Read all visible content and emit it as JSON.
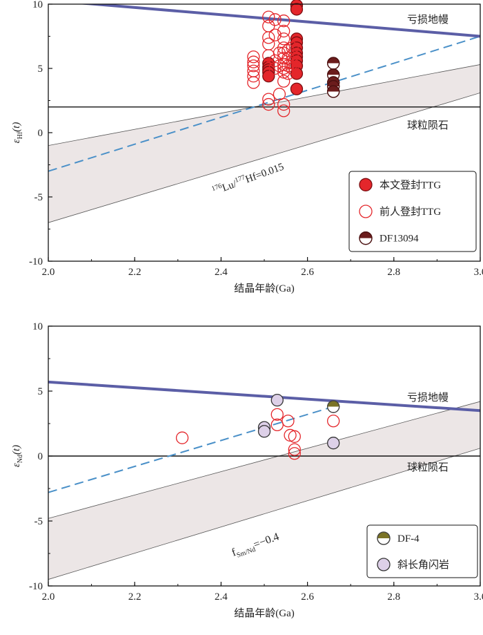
{
  "chart_data": [
    {
      "type": "scatter",
      "title": "",
      "xlabel": "结晶年龄(Ga)",
      "ylabel": "εHf(t)",
      "xlim": [
        2.0,
        3.0
      ],
      "ylim": [
        -10,
        10
      ],
      "xticks": [
        "2.0",
        "2.2",
        "2.4",
        "2.6",
        "2.8",
        "3.0"
      ],
      "yticks": [
        "10",
        "5",
        "0",
        "-5",
        "-10"
      ],
      "reference_lines": {
        "depleted_mantle": {
          "label": "亏损地幔",
          "x": [
            2.0,
            3.0
          ],
          "y": [
            10.3,
            7.5
          ],
          "color": "#5b5ea6"
        },
        "chondrite": {
          "label": "球粒陨石",
          "y": 2.0
        },
        "evolution_line": {
          "label": "176Lu/177Hf=0.015",
          "x": [
            2.0,
            3.0
          ],
          "y": [
            -3.0,
            7.5
          ],
          "color": "#4a90c8"
        },
        "band": {
          "upper": [
            -1.0,
            5.3
          ],
          "lower": [
            -7.0,
            3.1
          ]
        }
      },
      "legend": {
        "placement": "bottom-right",
        "entries": [
          "本文登封TTG",
          "前人登封TTG",
          "DF13094"
        ]
      },
      "series": [
        {
          "name": "本文登封TTG",
          "marker": "filled-red",
          "points": [
            [
              2.575,
              9.9
            ],
            [
              2.575,
              9.6
            ],
            [
              2.575,
              7.3
            ],
            [
              2.575,
              7.0
            ],
            [
              2.575,
              6.6
            ],
            [
              2.575,
              6.2
            ],
            [
              2.575,
              5.9
            ],
            [
              2.575,
              5.6
            ],
            [
              2.575,
              5.2
            ],
            [
              2.575,
              4.6
            ],
            [
              2.575,
              3.4
            ],
            [
              2.51,
              5.4
            ],
            [
              2.51,
              5.1
            ],
            [
              2.51,
              4.9
            ],
            [
              2.51,
              4.7
            ],
            [
              2.51,
              4.4
            ]
          ]
        },
        {
          "name": "前人登封TTG",
          "marker": "open-red",
          "points": [
            [
              2.475,
              5.9
            ],
            [
              2.475,
              5.5
            ],
            [
              2.475,
              5.2
            ],
            [
              2.475,
              4.8
            ],
            [
              2.475,
              4.4
            ],
            [
              2.475,
              3.9
            ],
            [
              2.51,
              9.0
            ],
            [
              2.51,
              8.3
            ],
            [
              2.51,
              7.4
            ],
            [
              2.51,
              6.9
            ],
            [
              2.51,
              6.0
            ],
            [
              2.51,
              2.6
            ],
            [
              2.51,
              2.2
            ],
            [
              2.525,
              8.8
            ],
            [
              2.525,
              7.6
            ],
            [
              2.525,
              5.6
            ],
            [
              2.525,
              5.0
            ],
            [
              2.535,
              6.2
            ],
            [
              2.535,
              5.2
            ],
            [
              2.535,
              3.0
            ],
            [
              2.545,
              8.7
            ],
            [
              2.545,
              7.9
            ],
            [
              2.545,
              7.3
            ],
            [
              2.545,
              6.6
            ],
            [
              2.545,
              6.2
            ],
            [
              2.545,
              5.8
            ],
            [
              2.545,
              5.3
            ],
            [
              2.545,
              5.0
            ],
            [
              2.545,
              4.7
            ],
            [
              2.545,
              4.0
            ],
            [
              2.545,
              2.2
            ],
            [
              2.545,
              1.7
            ],
            [
              2.555,
              6.4
            ],
            [
              2.555,
              5.8
            ],
            [
              2.555,
              5.2
            ],
            [
              2.555,
              4.6
            ],
            [
              2.565,
              6.6
            ],
            [
              2.565,
              6.0
            ],
            [
              2.565,
              5.4
            ],
            [
              2.565,
              5.0
            ]
          ]
        },
        {
          "name": "DF13094",
          "marker": "half-dark-red",
          "points": [
            [
              2.66,
              5.4
            ],
            [
              2.66,
              4.5
            ],
            [
              2.66,
              3.9
            ],
            [
              2.66,
              3.6
            ],
            [
              2.66,
              3.2
            ]
          ]
        }
      ]
    },
    {
      "type": "scatter",
      "title": "",
      "xlabel": "结晶年龄(Ga)",
      "ylabel": "εNd(t)",
      "xlim": [
        2.0,
        3.0
      ],
      "ylim": [
        -10,
        10
      ],
      "xticks": [
        "2.0",
        "2.2",
        "2.4",
        "2.6",
        "2.8",
        "3.0"
      ],
      "yticks": [
        "10",
        "5",
        "0",
        "-5",
        "-10"
      ],
      "reference_lines": {
        "depleted_mantle": {
          "label": "亏损地幔",
          "x": [
            2.0,
            3.0
          ],
          "y": [
            5.7,
            3.5
          ],
          "color": "#5b5ea6"
        },
        "chondrite": {
          "label": "球粒陨石",
          "y": 0.0
        },
        "evolution_line": {
          "label": "fSm/Nd=−0.4",
          "x": [
            2.0,
            2.66
          ],
          "y": [
            -2.8,
            3.8
          ],
          "color": "#4a90c8"
        },
        "band": {
          "upper": [
            -4.8,
            4.2
          ],
          "lower": [
            -9.5,
            0.6
          ]
        }
      },
      "legend": {
        "placement": "bottom-right",
        "entries": [
          "DF-4",
          "斜长角闪岩"
        ]
      },
      "series": [
        {
          "name": "",
          "marker": "open-red",
          "points": [
            [
              2.31,
              1.4
            ],
            [
              2.53,
              3.2
            ],
            [
              2.53,
              2.4
            ],
            [
              2.555,
              2.7
            ],
            [
              2.56,
              1.6
            ],
            [
              2.57,
              1.5
            ],
            [
              2.57,
              0.5
            ],
            [
              2.57,
              0.2
            ],
            [
              2.66,
              2.7
            ]
          ]
        },
        {
          "name": "DF-4",
          "marker": "half-olive",
          "points": [
            [
              2.66,
              3.8
            ]
          ]
        },
        {
          "name": "斜长角闪岩",
          "marker": "lavender",
          "points": [
            [
              2.5,
              2.2
            ],
            [
              2.5,
              1.9
            ],
            [
              2.53,
              4.3
            ],
            [
              2.66,
              1.0
            ]
          ]
        }
      ]
    }
  ]
}
